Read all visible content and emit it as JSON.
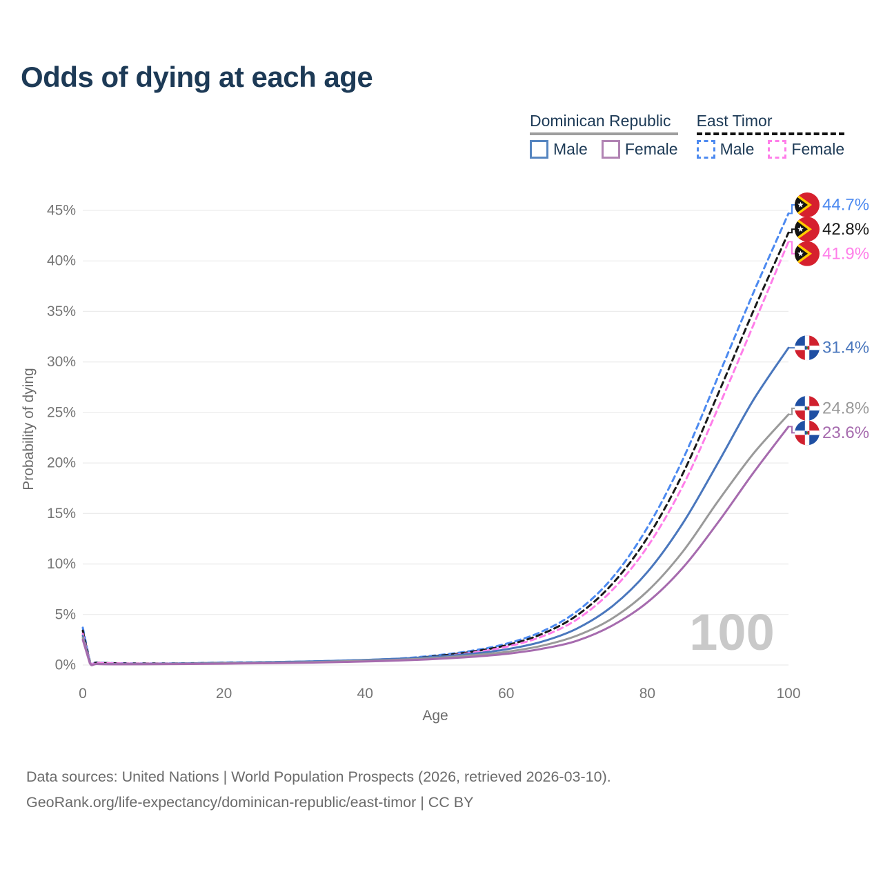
{
  "title": "Odds of dying at each age",
  "watermark": "100",
  "legend": {
    "groups": [
      {
        "label": "Dominican Republic",
        "line_style": "solid",
        "line_color": "#9e9e9e",
        "items": [
          {
            "label": "Male",
            "color": "#5585c0",
            "dashed": false
          },
          {
            "label": "Female",
            "color": "#b183b3",
            "dashed": false
          }
        ]
      },
      {
        "label": "East Timor",
        "line_style": "dashed",
        "line_color": "#111111",
        "items": [
          {
            "label": "Male",
            "color": "#4d8af0",
            "dashed": true
          },
          {
            "label": "Female",
            "color": "#ff7ee9",
            "dashed": true
          }
        ]
      }
    ]
  },
  "sources": {
    "line1": "Data sources: United Nations | World Population Prospects (2026, retrieved 2026-03-10).",
    "line2": "GeoRank.org/life-expectancy/dominican-republic/east-timor | CC BY"
  },
  "chart_data": {
    "type": "line",
    "title": "Odds of dying at each age",
    "xlabel": "Age",
    "ylabel": "Probability of dying",
    "xlim": [
      0,
      100
    ],
    "ylim": [
      0,
      45
    ],
    "grid": true,
    "legend_position": "top-right",
    "xticks": [
      0,
      20,
      40,
      60,
      80,
      100
    ],
    "xtick_labels": [
      "0",
      "20",
      "40",
      "60",
      "80",
      "100"
    ],
    "yticks": [
      0,
      5,
      10,
      15,
      20,
      25,
      30,
      35,
      40,
      45
    ],
    "ytick_labels": [
      "0%",
      "5%",
      "10%",
      "15%",
      "20%",
      "25%",
      "30%",
      "35%",
      "40%",
      "45%"
    ],
    "ages": [
      0,
      1,
      2,
      5,
      10,
      15,
      20,
      25,
      30,
      35,
      40,
      45,
      50,
      55,
      60,
      65,
      70,
      75,
      80,
      85,
      90,
      95,
      100
    ],
    "series": [
      {
        "name": "East Timor Male",
        "country": "East Timor",
        "sex": "Male",
        "color": "#4d8af0",
        "dashed": true,
        "flag": "east-timor",
        "end_label": "44.7%",
        "values": [
          3.7,
          0.35,
          0.25,
          0.18,
          0.15,
          0.18,
          0.24,
          0.28,
          0.33,
          0.4,
          0.5,
          0.65,
          0.95,
          1.4,
          2.1,
          3.3,
          5.3,
          8.6,
          13.6,
          20.3,
          28.5,
          36.8,
          44.7
        ]
      },
      {
        "name": "East Timor Both sexes",
        "country": "East Timor",
        "sex": "Both sexes",
        "color": "#1a1a1a",
        "dashed": true,
        "flag": "east-timor",
        "end_label": "42.8%",
        "values": [
          3.4,
          0.32,
          0.23,
          0.16,
          0.14,
          0.16,
          0.21,
          0.25,
          0.3,
          0.36,
          0.46,
          0.6,
          0.88,
          1.3,
          1.95,
          3.05,
          4.9,
          8.0,
          12.6,
          18.9,
          26.8,
          35.0,
          42.8
        ]
      },
      {
        "name": "East Timor Female",
        "country": "East Timor",
        "sex": "Female",
        "color": "#ff7ee9",
        "dashed": true,
        "flag": "east-timor",
        "end_label": "41.9%",
        "values": [
          3.1,
          0.3,
          0.21,
          0.15,
          0.13,
          0.15,
          0.18,
          0.22,
          0.27,
          0.33,
          0.42,
          0.55,
          0.8,
          1.2,
          1.8,
          2.8,
          4.5,
          7.4,
          11.7,
          17.7,
          25.4,
          33.6,
          41.9
        ]
      },
      {
        "name": "Dominican Republic Male",
        "country": "Dominican Republic",
        "sex": "Male",
        "color": "#4a77bd",
        "dashed": false,
        "flag": "dominican-republic",
        "end_label": "31.4%",
        "values": [
          2.9,
          0.22,
          0.12,
          0.09,
          0.1,
          0.14,
          0.2,
          0.26,
          0.32,
          0.4,
          0.5,
          0.63,
          0.82,
          1.1,
          1.55,
          2.3,
          3.6,
          5.8,
          9.2,
          14.0,
          20.0,
          26.2,
          31.4
        ]
      },
      {
        "name": "Dominican Republic Both sexes",
        "country": "Dominican Republic",
        "sex": "Both sexes",
        "color": "#9a9a9a",
        "dashed": false,
        "flag": "dominican-republic",
        "end_label": "24.8%",
        "values": [
          2.7,
          0.2,
          0.11,
          0.08,
          0.09,
          0.12,
          0.17,
          0.21,
          0.26,
          0.33,
          0.42,
          0.53,
          0.7,
          0.95,
          1.3,
          1.9,
          2.9,
          4.6,
          7.3,
          11.2,
          16.2,
          20.9,
          24.8
        ]
      },
      {
        "name": "Dominican Republic Female",
        "country": "Dominican Republic",
        "sex": "Female",
        "color": "#a66bae",
        "dashed": false,
        "flag": "dominican-republic",
        "end_label": "23.6%",
        "values": [
          2.5,
          0.18,
          0.1,
          0.07,
          0.08,
          0.1,
          0.13,
          0.17,
          0.21,
          0.27,
          0.35,
          0.45,
          0.6,
          0.8,
          1.1,
          1.6,
          2.4,
          3.9,
          6.2,
          9.6,
          14.1,
          19.0,
          23.6
        ]
      }
    ],
    "flag_colors": {
      "east_timor": {
        "red": "#d6202e",
        "yellow": "#ffcc00",
        "black": "#141414",
        "star": "#ffffff"
      },
      "dominican_republic": {
        "blue": "#1f4fa3",
        "red": "#d0202e",
        "cross": "#ffffff",
        "emblem_green": "#3a7d2f"
      }
    }
  }
}
